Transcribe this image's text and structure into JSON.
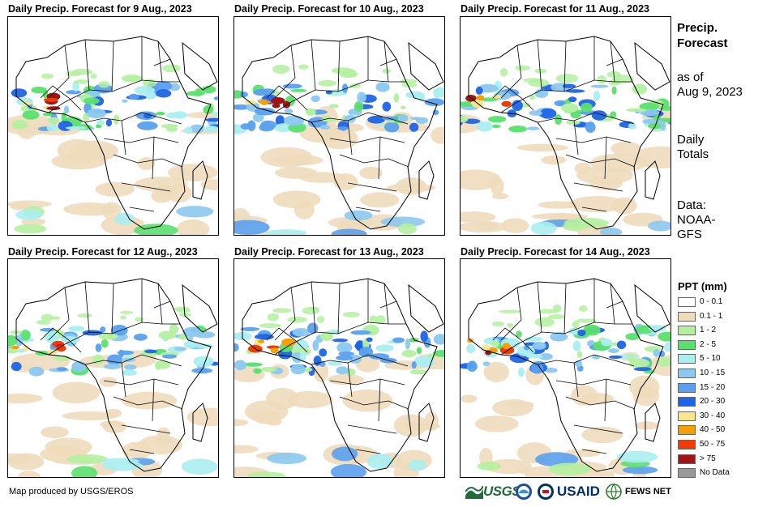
{
  "panels": [
    {
      "title": "Daily Precip. Forecast for 9 Aug., 2023"
    },
    {
      "title": "Daily Precip. Forecast for 10 Aug., 2023"
    },
    {
      "title": "Daily Precip. Forecast for 11 Aug., 2023"
    },
    {
      "title": "Daily Precip. Forecast for 12 Aug., 2023"
    },
    {
      "title": "Daily Precip. Forecast for 13 Aug., 2023"
    },
    {
      "title": "Daily Precip. Forecast for 14 Aug., 2023"
    }
  ],
  "side": {
    "heading1": "Precip.",
    "heading2": "Forecast",
    "asof1": "as of",
    "asof2": "Aug 9, 2023",
    "totals1": "Daily",
    "totals2": "Totals",
    "data1": "Data:",
    "data2": "NOAA-",
    "data3": "GFS"
  },
  "legend": {
    "title": "PPT (mm)",
    "items": [
      {
        "label": "0 - 0.1",
        "color": "#ffffff"
      },
      {
        "label": "0.1 - 1",
        "color": "#eedcbd"
      },
      {
        "label": "1 - 2",
        "color": "#b4f0a0"
      },
      {
        "label": "2 - 5",
        "color": "#5ae06e"
      },
      {
        "label": "5 - 10",
        "color": "#aaeef0"
      },
      {
        "label": "10 - 15",
        "color": "#8cc8f0"
      },
      {
        "label": "15 - 20",
        "color": "#5aa0ee"
      },
      {
        "label": "20 - 30",
        "color": "#1e64e6"
      },
      {
        "label": "30 - 40",
        "color": "#f8e68c"
      },
      {
        "label": "40 - 50",
        "color": "#f4a000"
      },
      {
        "label": "50 - 75",
        "color": "#f03c00"
      },
      {
        "label": "> 75",
        "color": "#a01414"
      },
      {
        "label": "No Data",
        "color": "#999999"
      }
    ]
  },
  "footer": {
    "credit": "Map produced by USGS/EROS",
    "usgs": "USGS",
    "usaid": "USAID",
    "fews": "FEWS NET"
  }
}
